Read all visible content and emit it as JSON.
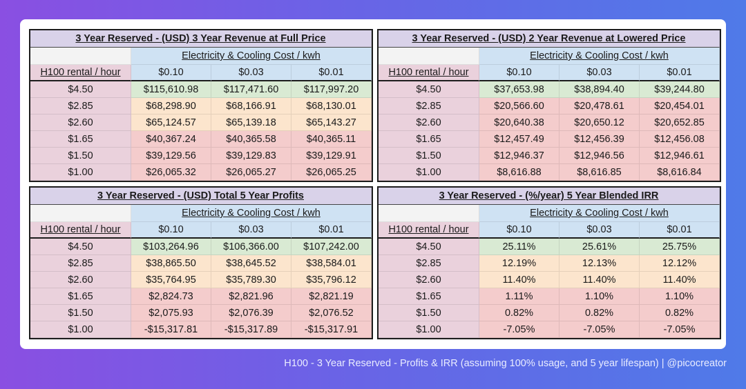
{
  "caption": "H100 - 3 Year Reserved - Profits & IRR (assuming 100% usage, and 5 year lifespan) | @picocreator",
  "colors": {
    "green": "#d9ead3",
    "yellow": "#fce5cd",
    "red": "#f4cccc",
    "row_label": "#ead1dc",
    "col_header": "#cfe2f3",
    "title": "#d9d2e9"
  },
  "tables": [
    {
      "title": "3 Year Reserved - (USD) 3 Year Revenue at Full Price",
      "group_header": "Electricity & Cooling Cost / kwh",
      "row_header": "H100 rental / hour",
      "columns": [
        "$0.10",
        "$0.03",
        "$0.01"
      ],
      "rows": [
        {
          "label": "$4.50",
          "tone": "green",
          "values": [
            "$115,610.98",
            "$117,471.60",
            "$117,997.20"
          ]
        },
        {
          "label": "$2.85",
          "tone": "yellow",
          "values": [
            "$68,298.90",
            "$68,166.91",
            "$68,130.01"
          ]
        },
        {
          "label": "$2.60",
          "tone": "yellow",
          "values": [
            "$65,124.57",
            "$65,139.18",
            "$65,143.27"
          ]
        },
        {
          "label": "$1.65",
          "tone": "red",
          "values": [
            "$40,367.24",
            "$40,365.58",
            "$40,365.11"
          ]
        },
        {
          "label": "$1.50",
          "tone": "red",
          "values": [
            "$39,129.56",
            "$39,129.83",
            "$39,129.91"
          ]
        },
        {
          "label": "$1.00",
          "tone": "red",
          "values": [
            "$26,065.32",
            "$26,065.27",
            "$26,065.25"
          ]
        }
      ]
    },
    {
      "title": "3 Year Reserved - (USD) 2 Year Revenue at Lowered Price",
      "group_header": "Electricity & Cooling Cost / kwh",
      "row_header": "H100 rental / hour",
      "columns": [
        "$0.10",
        "$0.03",
        "$0.01"
      ],
      "rows": [
        {
          "label": "$4.50",
          "tone": "green",
          "values": [
            "$37,653.98",
            "$38,894.40",
            "$39,244.80"
          ]
        },
        {
          "label": "$2.85",
          "tone": "red",
          "values": [
            "$20,566.60",
            "$20,478.61",
            "$20,454.01"
          ]
        },
        {
          "label": "$2.60",
          "tone": "red",
          "values": [
            "$20,640.38",
            "$20,650.12",
            "$20,652.85"
          ]
        },
        {
          "label": "$1.65",
          "tone": "red",
          "values": [
            "$12,457.49",
            "$12,456.39",
            "$12,456.08"
          ]
        },
        {
          "label": "$1.50",
          "tone": "red",
          "values": [
            "$12,946.37",
            "$12,946.56",
            "$12,946.61"
          ]
        },
        {
          "label": "$1.00",
          "tone": "red",
          "values": [
            "$8,616.88",
            "$8,616.85",
            "$8,616.84"
          ]
        }
      ]
    },
    {
      "title": "3 Year Reserved - (USD) Total 5 Year Profits",
      "group_header": "Electricity & Cooling Cost / kwh",
      "row_header": "H100 rental / hour",
      "columns": [
        "$0.10",
        "$0.03",
        "$0.01"
      ],
      "rows": [
        {
          "label": "$4.50",
          "tone": "green",
          "values": [
            "$103,264.96",
            "$106,366.00",
            "$107,242.00"
          ]
        },
        {
          "label": "$2.85",
          "tone": "yellow",
          "values": [
            "$38,865.50",
            "$38,645.52",
            "$38,584.01"
          ]
        },
        {
          "label": "$2.60",
          "tone": "yellow",
          "values": [
            "$35,764.95",
            "$35,789.30",
            "$35,796.12"
          ]
        },
        {
          "label": "$1.65",
          "tone": "red",
          "values": [
            "$2,824.73",
            "$2,821.96",
            "$2,821.19"
          ]
        },
        {
          "label": "$1.50",
          "tone": "red",
          "values": [
            "$2,075.93",
            "$2,076.39",
            "$2,076.52"
          ]
        },
        {
          "label": "$1.00",
          "tone": "red",
          "values": [
            "-$15,317.81",
            "-$15,317.89",
            "-$15,317.91"
          ]
        }
      ]
    },
    {
      "title": "3 Year Reserved - (%/year) 5 Year Blended IRR",
      "group_header": "Electricity & Cooling Cost / kwh",
      "row_header": "H100 rental / hour",
      "columns": [
        "$0.10",
        "$0.03",
        "$0.01"
      ],
      "rows": [
        {
          "label": "$4.50",
          "tone": "green",
          "values": [
            "25.11%",
            "25.61%",
            "25.75%"
          ]
        },
        {
          "label": "$2.85",
          "tone": "yellow",
          "values": [
            "12.19%",
            "12.13%",
            "12.12%"
          ]
        },
        {
          "label": "$2.60",
          "tone": "yellow",
          "values": [
            "11.40%",
            "11.40%",
            "11.40%"
          ]
        },
        {
          "label": "$1.65",
          "tone": "red",
          "values": [
            "1.11%",
            "1.10%",
            "1.10%"
          ]
        },
        {
          "label": "$1.50",
          "tone": "red",
          "values": [
            "0.82%",
            "0.82%",
            "0.82%"
          ]
        },
        {
          "label": "$1.00",
          "tone": "red",
          "values": [
            "-7.05%",
            "-7.05%",
            "-7.05%"
          ]
        }
      ]
    }
  ]
}
